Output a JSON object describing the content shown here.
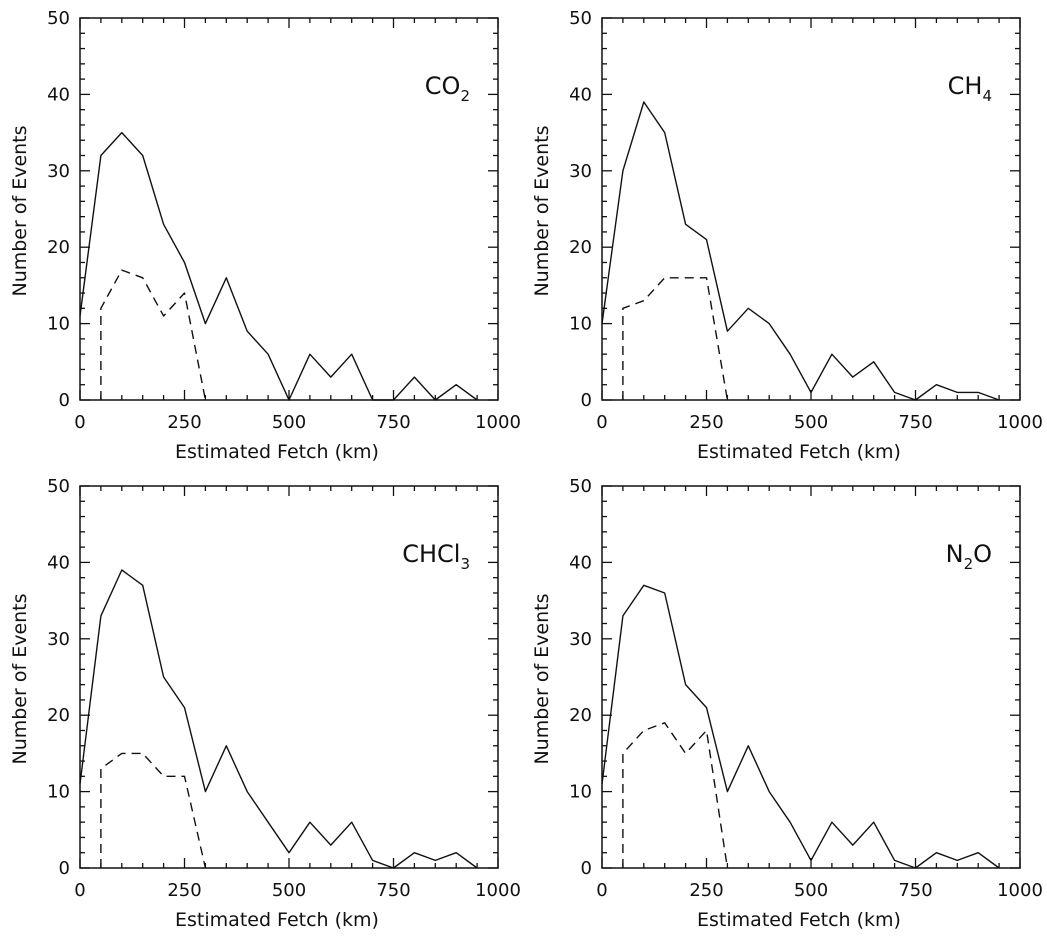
{
  "chart_data": [
    {
      "type": "line",
      "label": "CO",
      "label_sub": "2",
      "xlabel": "Estimated Fetch (km)",
      "ylabel": "Number of Events",
      "xlim": [
        0,
        1000
      ],
      "ylim": [
        0,
        50
      ],
      "xticks": [
        "0",
        "250",
        "500",
        "750",
        "1000"
      ],
      "yticks": [
        "0",
        "10",
        "20",
        "30",
        "40",
        "50"
      ],
      "series": [
        {
          "style": "solid",
          "x": [
            0,
            50,
            100,
            150,
            200,
            250,
            300,
            350,
            400,
            450,
            500,
            550,
            600,
            650,
            700,
            750,
            800,
            850,
            900,
            950
          ],
          "y": [
            11,
            32,
            35,
            32,
            23,
            18,
            10,
            16,
            9,
            6,
            0,
            6,
            3,
            6,
            0,
            0,
            3,
            0,
            2,
            0
          ]
        },
        {
          "style": "dashed",
          "x": [
            50,
            50,
            100,
            150,
            200,
            250,
            300
          ],
          "y": [
            0,
            12,
            17,
            16,
            11,
            14,
            0
          ]
        }
      ]
    },
    {
      "type": "line",
      "label": "CH",
      "label_sub": "4",
      "xlabel": "Estimated Fetch (km)",
      "ylabel": "Number of Events",
      "xlim": [
        0,
        1000
      ],
      "ylim": [
        0,
        50
      ],
      "xticks": [
        "0",
        "250",
        "500",
        "750",
        "1000"
      ],
      "yticks": [
        "0",
        "10",
        "20",
        "30",
        "40",
        "50"
      ],
      "series": [
        {
          "style": "solid",
          "x": [
            0,
            50,
            100,
            150,
            200,
            250,
            300,
            350,
            400,
            450,
            500,
            550,
            600,
            650,
            700,
            750,
            800,
            850,
            900,
            950
          ],
          "y": [
            10,
            30,
            39,
            35,
            23,
            21,
            9,
            12,
            10,
            6,
            1,
            6,
            3,
            5,
            1,
            0,
            2,
            1,
            1,
            0
          ]
        },
        {
          "style": "dashed",
          "x": [
            50,
            50,
            100,
            150,
            200,
            250,
            300
          ],
          "y": [
            0,
            12,
            13,
            16,
            16,
            16,
            0
          ]
        }
      ]
    },
    {
      "type": "line",
      "label": "CHCl",
      "label_sub": "3",
      "xlabel": "Estimated Fetch (km)",
      "ylabel": "Number of Events",
      "xlim": [
        0,
        1000
      ],
      "ylim": [
        0,
        50
      ],
      "xticks": [
        "0",
        "250",
        "500",
        "750",
        "1000"
      ],
      "yticks": [
        "0",
        "10",
        "20",
        "30",
        "40",
        "50"
      ],
      "series": [
        {
          "style": "solid",
          "x": [
            0,
            50,
            100,
            150,
            200,
            250,
            300,
            350,
            400,
            450,
            500,
            550,
            600,
            650,
            700,
            750,
            800,
            850,
            900,
            950
          ],
          "y": [
            11,
            33,
            39,
            37,
            25,
            21,
            10,
            16,
            10,
            6,
            2,
            6,
            3,
            6,
            1,
            0,
            2,
            1,
            2,
            0
          ]
        },
        {
          "style": "dashed",
          "x": [
            50,
            50,
            100,
            150,
            200,
            250,
            300
          ],
          "y": [
            0,
            13,
            15,
            15,
            12,
            12,
            0
          ]
        }
      ]
    },
    {
      "type": "line",
      "label": "N",
      "label_sub": "2",
      "label_tail": "O",
      "xlabel": "Estimated Fetch (km)",
      "ylabel": "Number of Events",
      "xlim": [
        0,
        1000
      ],
      "ylim": [
        0,
        50
      ],
      "xticks": [
        "0",
        "250",
        "500",
        "750",
        "1000"
      ],
      "yticks": [
        "0",
        "10",
        "20",
        "30",
        "40",
        "50"
      ],
      "series": [
        {
          "style": "solid",
          "x": [
            0,
            50,
            100,
            150,
            200,
            250,
            300,
            350,
            400,
            450,
            500,
            550,
            600,
            650,
            700,
            750,
            800,
            850,
            900,
            950
          ],
          "y": [
            11,
            33,
            37,
            36,
            24,
            21,
            10,
            16,
            10,
            6,
            1,
            6,
            3,
            6,
            1,
            0,
            2,
            1,
            2,
            0
          ]
        },
        {
          "style": "dashed",
          "x": [
            50,
            50,
            100,
            150,
            200,
            250,
            300
          ],
          "y": [
            0,
            15,
            18,
            19,
            15,
            18,
            0
          ]
        }
      ]
    }
  ]
}
